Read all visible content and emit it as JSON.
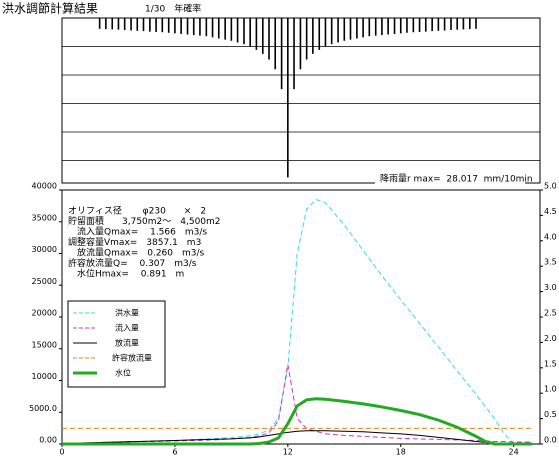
{
  "chart_data": [
    {
      "type": "bar",
      "title": "洪水調節計算結果",
      "subtitle": "1/30　年確率",
      "annotation": "降雨量r max=  28.017  mm/10min",
      "color": "#000000",
      "inverted": true,
      "xlim": [
        0,
        25.4
      ],
      "ylim": [
        0,
        29
      ],
      "x": [
        2,
        2.33,
        2.67,
        3,
        3.33,
        3.67,
        4,
        4.33,
        4.67,
        5,
        5.33,
        5.67,
        6,
        6.33,
        6.67,
        7,
        7.33,
        7.67,
        8,
        8.33,
        8.67,
        9,
        9.33,
        9.67,
        10,
        10.33,
        10.67,
        11,
        11.33,
        11.67,
        12,
        12.33,
        12.67,
        13,
        13.33,
        13.67,
        14,
        14.33,
        14.67,
        15,
        15.33,
        15.67,
        16,
        16.33,
        16.67,
        17,
        17.33,
        17.67,
        18,
        18.33,
        18.67,
        19,
        19.33,
        19.67,
        20,
        20.33,
        20.67,
        21,
        21.33,
        21.67,
        22
      ],
      "values": [
        1.9,
        1.95,
        2.0,
        2.05,
        2.1,
        2.2,
        2.25,
        2.3,
        2.4,
        2.45,
        2.5,
        2.6,
        2.7,
        2.8,
        2.9,
        3.0,
        3.1,
        3.2,
        3.4,
        3.6,
        3.8,
        4.0,
        4.3,
        4.6,
        5.0,
        5.6,
        6.3,
        7.3,
        9.0,
        12.5,
        28.017,
        12.5,
        9.0,
        7.3,
        6.3,
        5.6,
        5.0,
        4.6,
        4.3,
        4.0,
        3.8,
        3.6,
        3.4,
        3.2,
        3.1,
        3.0,
        2.9,
        2.8,
        2.7,
        2.6,
        2.5,
        2.45,
        2.4,
        2.3,
        2.25,
        2.2,
        2.1,
        2.05,
        2.0,
        1.95,
        1.9
      ]
    },
    {
      "type": "line",
      "xlim": [
        0,
        25.4
      ],
      "xticks": [
        0,
        6,
        12,
        18,
        24
      ],
      "ylim": [
        0,
        40000
      ],
      "yticks": [
        {
          "value": 0,
          "label": "0.00"
        },
        {
          "value": 5000,
          "label": "5000.0"
        },
        10000,
        15000,
        20000,
        25000,
        30000,
        35000,
        40000
      ],
      "y2lim": [
        0,
        5
      ],
      "y2ticks": [
        {
          "value": 0,
          "label": "0.0"
        },
        0.5,
        {
          "value": 1,
          "label": "1.0"
        },
        1.5,
        {
          "value": 2,
          "label": "2.0"
        },
        2.5,
        {
          "value": 3,
          "label": "3.0"
        },
        3.5,
        {
          "value": 4,
          "label": "4.0"
        },
        4.5,
        {
          "value": 5,
          "label": "5.0"
        }
      ],
      "annotations": [
        "オリフィス径　　 φ230　　×　2",
        "貯留面積　　3,750m2〜　4,500m2",
        "　流入量Qmax=　 1.566　m3/s",
        "調整容量Vmax=　3857.1　m3",
        "　放流量Qmax=　0.260　m3/s",
        "許容放流量Q=　 0.307　m3/s",
        "　水位Hmax=　 0.891　m"
      ],
      "x": [
        0,
        1,
        2,
        3,
        4,
        5,
        6,
        7,
        8,
        9,
        10,
        10.5,
        11,
        11.5,
        12,
        12.5,
        13,
        13.5,
        14,
        15,
        16,
        17,
        18,
        19,
        20,
        21,
        22,
        22.5,
        23,
        23.5,
        24,
        25
      ],
      "series": [
        {
          "name": "洪水量",
          "color": "#33dddd",
          "dash": true,
          "width": 1,
          "values": [
            0,
            50,
            150,
            250,
            350,
            450,
            550,
            700,
            850,
            1000,
            1300,
            1600,
            2200,
            4000,
            12000,
            30000,
            37000,
            38500,
            38000,
            34500,
            30500,
            26500,
            22700,
            19000,
            15300,
            11500,
            7800,
            5900,
            3900,
            1600,
            100,
            50
          ]
        },
        {
          "name": "流入量",
          "color": "#cc33cc",
          "dash": true,
          "width": 1,
          "axis": "y2",
          "values": [
            0.02,
            0.02,
            0.03,
            0.04,
            0.05,
            0.05,
            0.06,
            0.07,
            0.08,
            0.1,
            0.13,
            0.16,
            0.22,
            0.45,
            1.566,
            0.5,
            0.3,
            0.25,
            0.2,
            0.17,
            0.15,
            0.13,
            0.11,
            0.1,
            0.09,
            0.08,
            0.07,
            0.06,
            0.05,
            0.05,
            0.04,
            0.04
          ]
        },
        {
          "name": "放流量",
          "color": "#000000",
          "dash": false,
          "width": 1,
          "axis": "y2",
          "values": [
            0.01,
            0.02,
            0.03,
            0.04,
            0.05,
            0.06,
            0.07,
            0.08,
            0.09,
            0.1,
            0.12,
            0.14,
            0.17,
            0.2,
            0.23,
            0.25,
            0.26,
            0.26,
            0.26,
            0.25,
            0.24,
            0.22,
            0.2,
            0.17,
            0.13,
            0.09,
            0.05,
            0.03,
            0.02,
            0.01,
            0.01,
            0.01
          ]
        },
        {
          "name": "許容放流量",
          "color": "#e08020",
          "dash": true,
          "width": 1,
          "axis": "y2",
          "values": [
            0.307,
            0.307,
            0.307,
            0.307,
            0.307,
            0.307,
            0.307,
            0.307,
            0.307,
            0.307,
            0.307,
            0.307,
            0.307,
            0.307,
            0.307,
            0.307,
            0.307,
            0.307,
            0.307,
            0.307,
            0.307,
            0.307,
            0.307,
            0.307,
            0.307,
            0.307,
            0.307,
            0.307,
            0.307,
            0.307,
            0.307,
            0.307
          ]
        },
        {
          "name": "水位",
          "color": "#22aa22",
          "dash": false,
          "width": 3,
          "axis": "y2",
          "values": [
            0,
            0,
            0,
            0,
            0,
            0,
            0,
            0,
            0,
            0,
            0,
            0.01,
            0.04,
            0.12,
            0.4,
            0.75,
            0.87,
            0.891,
            0.88,
            0.84,
            0.79,
            0.73,
            0.66,
            0.58,
            0.47,
            0.33,
            0.15,
            0.05,
            0,
            0,
            0,
            0
          ]
        }
      ]
    }
  ]
}
